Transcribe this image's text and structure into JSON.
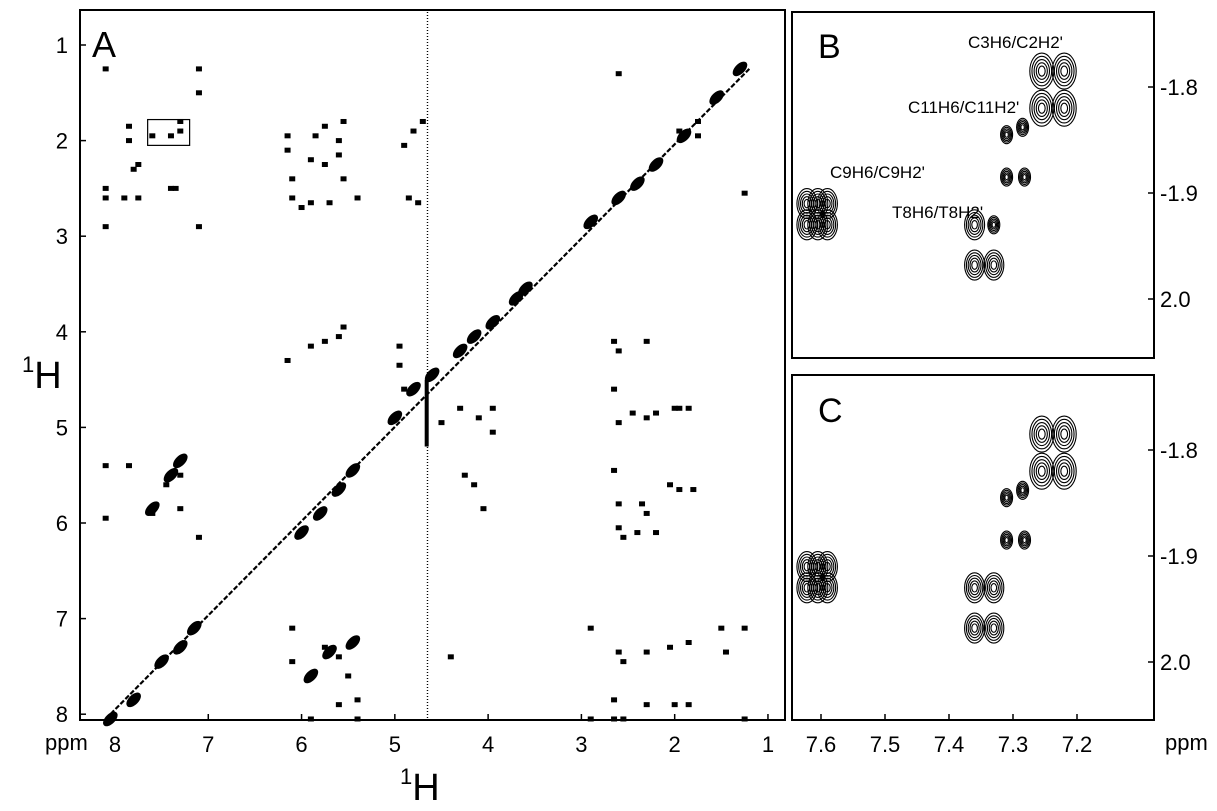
{
  "figure": {
    "y_axis_label_main": "H",
    "y_axis_label_sup": "1",
    "x_axis_label_main": "H",
    "x_axis_label_sup": "1",
    "unit_left": "ppm",
    "unit_right": "ppm"
  },
  "chart_data": [
    {
      "panel": "A",
      "type": "scatter",
      "description": "2D 1H-1H NOESY spectrum (contour peaks)",
      "xlim": [
        8.3,
        0.8
      ],
      "ylim": [
        0.8,
        8.7
      ],
      "x_ticks": [
        8,
        7,
        6,
        5,
        4,
        3,
        2,
        1
      ],
      "y_ticks": [
        1,
        2,
        3,
        4,
        5,
        6,
        7,
        8
      ],
      "diagonal": [
        [
          8.1,
          8.05
        ],
        [
          1.2,
          1.25
        ]
      ],
      "water_line_x": 4.65,
      "inset_box": {
        "x": [
          7.65,
          7.2
        ],
        "y": [
          1.78,
          2.05
        ]
      },
      "peaks": [
        {
          "x": 8.1,
          "y": 1.25
        },
        {
          "x": 7.85,
          "y": 1.85
        },
        {
          "x": 7.85,
          "y": 2.0
        },
        {
          "x": 7.8,
          "y": 2.3
        },
        {
          "x": 7.75,
          "y": 2.25
        },
        {
          "x": 7.6,
          "y": 1.95
        },
        {
          "x": 7.4,
          "y": 1.95
        },
        {
          "x": 7.3,
          "y": 1.8
        },
        {
          "x": 7.3,
          "y": 1.9
        },
        {
          "x": 7.1,
          "y": 1.25
        },
        {
          "x": 7.1,
          "y": 1.5
        },
        {
          "x": 8.1,
          "y": 2.5
        },
        {
          "x": 8.1,
          "y": 2.6
        },
        {
          "x": 7.9,
          "y": 2.6
        },
        {
          "x": 7.75,
          "y": 2.6
        },
        {
          "x": 7.4,
          "y": 2.5
        },
        {
          "x": 7.35,
          "y": 2.5
        },
        {
          "x": 8.1,
          "y": 2.9
        },
        {
          "x": 7.1,
          "y": 2.9
        },
        {
          "x": 6.15,
          "y": 1.95
        },
        {
          "x": 6.15,
          "y": 2.1
        },
        {
          "x": 6.1,
          "y": 2.4
        },
        {
          "x": 6.1,
          "y": 2.6
        },
        {
          "x": 5.9,
          "y": 2.2
        },
        {
          "x": 5.9,
          "y": 2.65
        },
        {
          "x": 5.85,
          "y": 1.95
        },
        {
          "x": 5.75,
          "y": 1.85
        },
        {
          "x": 5.75,
          "y": 2.25
        },
        {
          "x": 5.7,
          "y": 2.65
        },
        {
          "x": 5.6,
          "y": 2.0
        },
        {
          "x": 5.6,
          "y": 2.15
        },
        {
          "x": 5.55,
          "y": 1.8
        },
        {
          "x": 5.55,
          "y": 2.4
        },
        {
          "x": 5.4,
          "y": 2.6
        },
        {
          "x": 6.0,
          "y": 2.7
        },
        {
          "x": 4.9,
          "y": 2.05
        },
        {
          "x": 4.85,
          "y": 2.6
        },
        {
          "x": 4.8,
          "y": 1.9
        },
        {
          "x": 4.75,
          "y": 2.65
        },
        {
          "x": 4.7,
          "y": 1.8
        },
        {
          "x": 2.6,
          "y": 1.3
        },
        {
          "x": 1.95,
          "y": 1.9
        },
        {
          "x": 1.75,
          "y": 1.8
        },
        {
          "x": 1.75,
          "y": 1.95
        },
        {
          "x": 1.25,
          "y": 2.55
        },
        {
          "x": 6.15,
          "y": 4.3
        },
        {
          "x": 5.9,
          "y": 4.15
        },
        {
          "x": 5.75,
          "y": 4.1
        },
        {
          "x": 5.6,
          "y": 4.05
        },
        {
          "x": 5.55,
          "y": 3.95
        },
        {
          "x": 2.65,
          "y": 4.1
        },
        {
          "x": 2.6,
          "y": 4.2
        },
        {
          "x": 2.3,
          "y": 4.1
        },
        {
          "x": 8.1,
          "y": 5.4
        },
        {
          "x": 8.1,
          "y": 5.95
        },
        {
          "x": 7.85,
          "y": 5.4
        },
        {
          "x": 7.6,
          "y": 5.9
        },
        {
          "x": 7.45,
          "y": 5.6
        },
        {
          "x": 7.3,
          "y": 5.85
        },
        {
          "x": 7.1,
          "y": 6.15
        },
        {
          "x": 7.3,
          "y": 5.5
        },
        {
          "x": 4.95,
          "y": 4.15
        },
        {
          "x": 4.95,
          "y": 4.35
        },
        {
          "x": 4.9,
          "y": 4.6
        },
        {
          "x": 4.5,
          "y": 4.95
        },
        {
          "x": 4.3,
          "y": 4.8
        },
        {
          "x": 4.1,
          "y": 4.9
        },
        {
          "x": 3.95,
          "y": 4.8
        },
        {
          "x": 3.95,
          "y": 5.05
        },
        {
          "x": 4.15,
          "y": 5.6
        },
        {
          "x": 4.05,
          "y": 5.85
        },
        {
          "x": 4.25,
          "y": 5.5
        },
        {
          "x": 2.65,
          "y": 4.6
        },
        {
          "x": 2.6,
          "y": 4.95
        },
        {
          "x": 2.45,
          "y": 4.85
        },
        {
          "x": 2.3,
          "y": 4.9
        },
        {
          "x": 2.2,
          "y": 4.85
        },
        {
          "x": 2.0,
          "y": 4.8
        },
        {
          "x": 1.95,
          "y": 4.8
        },
        {
          "x": 1.85,
          "y": 4.8
        },
        {
          "x": 2.65,
          "y": 5.45
        },
        {
          "x": 2.6,
          "y": 5.8
        },
        {
          "x": 2.6,
          "y": 6.05
        },
        {
          "x": 2.55,
          "y": 6.15
        },
        {
          "x": 2.4,
          "y": 6.1
        },
        {
          "x": 2.35,
          "y": 5.8
        },
        {
          "x": 2.3,
          "y": 5.9
        },
        {
          "x": 2.2,
          "y": 6.1
        },
        {
          "x": 2.05,
          "y": 5.6
        },
        {
          "x": 1.95,
          "y": 5.65
        },
        {
          "x": 1.8,
          "y": 5.65
        },
        {
          "x": 6.1,
          "y": 7.1
        },
        {
          "x": 6.1,
          "y": 7.45
        },
        {
          "x": 5.75,
          "y": 7.3
        },
        {
          "x": 5.6,
          "y": 7.4
        },
        {
          "x": 5.5,
          "y": 7.6
        },
        {
          "x": 5.4,
          "y": 7.85
        },
        {
          "x": 5.9,
          "y": 8.05
        },
        {
          "x": 5.6,
          "y": 7.9
        },
        {
          "x": 5.4,
          "y": 8.05
        },
        {
          "x": 4.4,
          "y": 7.4
        },
        {
          "x": 2.9,
          "y": 7.1
        },
        {
          "x": 2.6,
          "y": 7.35
        },
        {
          "x": 2.55,
          "y": 7.45
        },
        {
          "x": 2.3,
          "y": 7.35
        },
        {
          "x": 2.05,
          "y": 7.3
        },
        {
          "x": 1.85,
          "y": 7.25
        },
        {
          "x": 1.5,
          "y": 7.1
        },
        {
          "x": 1.45,
          "y": 7.35
        },
        {
          "x": 1.25,
          "y": 7.1
        },
        {
          "x": 2.9,
          "y": 8.05
        },
        {
          "x": 2.65,
          "y": 7.85
        },
        {
          "x": 2.65,
          "y": 8.05
        },
        {
          "x": 2.55,
          "y": 8.05
        },
        {
          "x": 2.3,
          "y": 7.9
        },
        {
          "x": 2.0,
          "y": 7.9
        },
        {
          "x": 1.85,
          "y": 7.9
        },
        {
          "x": 1.25,
          "y": 8.05
        }
      ]
    },
    {
      "panel": "B",
      "type": "scatter",
      "description": "Expanded contour region (experimental)",
      "xlim": [
        7.64,
        7.19
      ],
      "ylim": [
        1.76,
        2.04
      ],
      "x_ticks": [
        7.6,
        7.5,
        7.4,
        7.3,
        7.2
      ],
      "y_ticks": [
        1.8,
        1.9,
        2.0
      ],
      "annotations": [
        {
          "text": "C3H6/C2H2'"
        },
        {
          "text": "C11H6/C11H2'"
        },
        {
          "text": "C9H6/C9H2'"
        },
        {
          "text": "T8H6/T8H2'"
        }
      ],
      "peaks": [
        {
          "x": 7.255,
          "y": 1.785,
          "size": "large"
        },
        {
          "x": 7.22,
          "y": 1.785,
          "size": "large"
        },
        {
          "x": 7.255,
          "y": 1.82,
          "size": "large"
        },
        {
          "x": 7.22,
          "y": 1.82,
          "size": "large"
        },
        {
          "x": 7.31,
          "y": 1.845,
          "size": "small"
        },
        {
          "x": 7.285,
          "y": 1.838,
          "size": "small"
        },
        {
          "x": 7.31,
          "y": 1.885,
          "size": "small"
        },
        {
          "x": 7.282,
          "y": 1.885,
          "size": "small"
        },
        {
          "x": 7.622,
          "y": 1.91,
          "size": "medium"
        },
        {
          "x": 7.605,
          "y": 1.91,
          "size": "medium"
        },
        {
          "x": 7.59,
          "y": 1.91,
          "size": "medium"
        },
        {
          "x": 7.622,
          "y": 1.93,
          "size": "medium"
        },
        {
          "x": 7.605,
          "y": 1.93,
          "size": "medium"
        },
        {
          "x": 7.59,
          "y": 1.93,
          "size": "medium"
        },
        {
          "x": 7.36,
          "y": 1.93,
          "size": "medium"
        },
        {
          "x": 7.33,
          "y": 1.93,
          "size": "small"
        },
        {
          "x": 7.36,
          "y": 1.968,
          "size": "medium"
        },
        {
          "x": 7.33,
          "y": 1.968,
          "size": "medium"
        }
      ]
    },
    {
      "panel": "C",
      "type": "scatter",
      "description": "Expanded contour region (simulated)",
      "xlim": [
        7.64,
        7.19
      ],
      "ylim": [
        1.76,
        2.04
      ],
      "x_ticks": [
        7.6,
        7.5,
        7.4,
        7.3,
        7.2
      ],
      "y_ticks": [
        1.8,
        1.9,
        2.0
      ],
      "peaks": [
        {
          "x": 7.255,
          "y": 1.785,
          "size": "large"
        },
        {
          "x": 7.22,
          "y": 1.785,
          "size": "large"
        },
        {
          "x": 7.255,
          "y": 1.82,
          "size": "large"
        },
        {
          "x": 7.22,
          "y": 1.82,
          "size": "large"
        },
        {
          "x": 7.31,
          "y": 1.845,
          "size": "small"
        },
        {
          "x": 7.285,
          "y": 1.838,
          "size": "small"
        },
        {
          "x": 7.31,
          "y": 1.885,
          "size": "small"
        },
        {
          "x": 7.282,
          "y": 1.885,
          "size": "small"
        },
        {
          "x": 7.622,
          "y": 1.91,
          "size": "medium"
        },
        {
          "x": 7.605,
          "y": 1.91,
          "size": "medium"
        },
        {
          "x": 7.59,
          "y": 1.91,
          "size": "medium"
        },
        {
          "x": 7.622,
          "y": 1.93,
          "size": "medium"
        },
        {
          "x": 7.605,
          "y": 1.93,
          "size": "medium"
        },
        {
          "x": 7.59,
          "y": 1.93,
          "size": "medium"
        },
        {
          "x": 7.36,
          "y": 1.93,
          "size": "medium"
        },
        {
          "x": 7.33,
          "y": 1.93,
          "size": "medium"
        },
        {
          "x": 7.36,
          "y": 1.968,
          "size": "medium"
        },
        {
          "x": 7.33,
          "y": 1.968,
          "size": "medium"
        }
      ]
    }
  ]
}
